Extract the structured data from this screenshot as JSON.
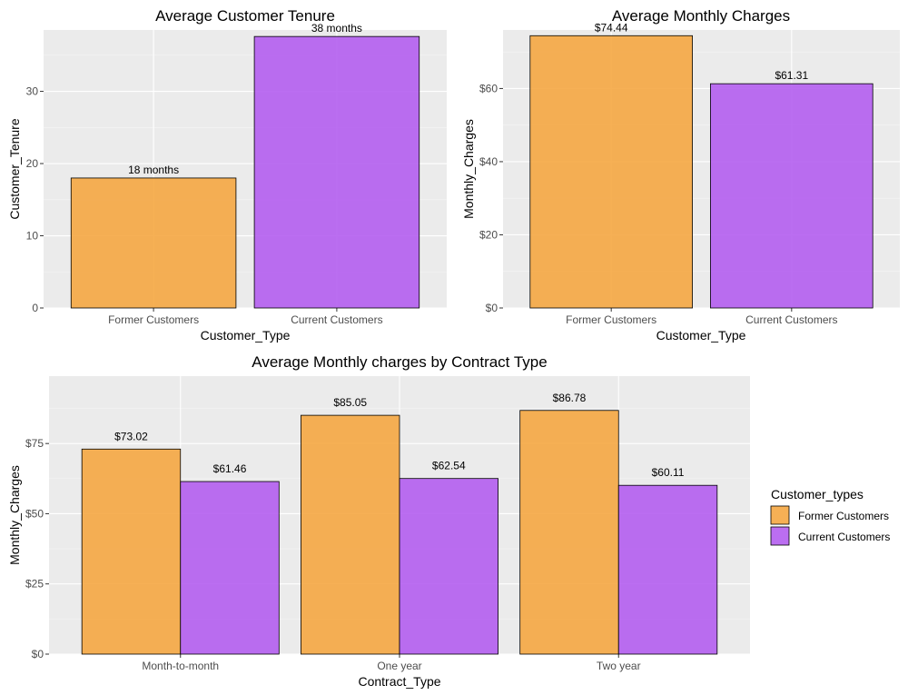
{
  "chart_data": [
    {
      "type": "bar",
      "title": "Average Customer Tenure",
      "xlabel": "Customer_Type",
      "ylabel": "Customer_Tenure",
      "categories": [
        "Former Customers",
        "Current Customers"
      ],
      "values": [
        18,
        37.6
      ],
      "data_labels": [
        "18 months",
        "38 months"
      ],
      "colors": [
        "#f5a742",
        "#b45ef0"
      ],
      "ylim": [
        0,
        38.5
      ],
      "yticks": [
        0,
        10,
        20,
        30
      ],
      "ytick_labels": [
        "0",
        "10",
        "20",
        "30"
      ],
      "grid": true
    },
    {
      "type": "bar",
      "title": "Average Monthly Charges",
      "xlabel": "Customer_Type",
      "ylabel": "Monthly_Charges",
      "categories": [
        "Former Customers",
        "Current Customers"
      ],
      "values": [
        74.44,
        61.31
      ],
      "data_labels": [
        "$74.44",
        "$61.31"
      ],
      "colors": [
        "#f5a742",
        "#b45ef0"
      ],
      "ylim": [
        0,
        76
      ],
      "yticks": [
        0,
        20,
        40,
        60
      ],
      "ytick_labels": [
        "$0",
        "$20",
        "$40",
        "$60"
      ],
      "grid": true
    },
    {
      "type": "bar",
      "title": "Average Monthly charges by Contract Type",
      "xlabel": "Contract_Type",
      "ylabel": "Monthly_Charges",
      "categories": [
        "Month-to-month",
        "One year",
        "Two year"
      ],
      "series": [
        {
          "name": "Former Customers",
          "color": "#f5a742",
          "values": [
            73.02,
            85.05,
            86.78
          ],
          "data_labels": [
            "$73.02",
            "$85.05",
            "$86.78"
          ]
        },
        {
          "name": "Current Customers",
          "color": "#b45ef0",
          "values": [
            61.46,
            62.54,
            60.11
          ],
          "data_labels": [
            "$61.46",
            "$62.54",
            "$60.11"
          ]
        }
      ],
      "ylim": [
        0,
        99
      ],
      "yticks": [
        0,
        25,
        50,
        75
      ],
      "ytick_labels": [
        "$0",
        "$25",
        "$50",
        "$75"
      ],
      "legend_title": "Customer_types",
      "legend_position": "right",
      "grid": true
    }
  ]
}
